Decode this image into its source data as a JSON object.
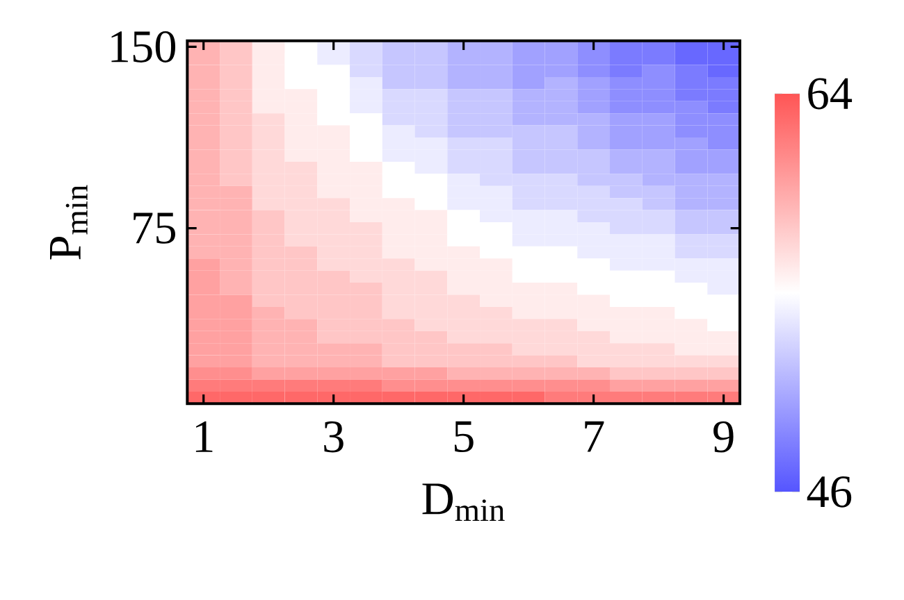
{
  "chart_data": {
    "type": "heatmap",
    "xlabel": "D$_{min}$",
    "ylabel": "P$_{min}$",
    "x": [
      1,
      1.5,
      2,
      2.5,
      3,
      3.5,
      4,
      4.5,
      5,
      5.5,
      6,
      6.5,
      7,
      7.5,
      8,
      8.5,
      9
    ],
    "y": [
      150,
      145,
      140,
      135,
      130,
      125,
      120,
      115,
      110,
      105,
      100,
      95,
      90,
      85,
      80,
      75,
      70,
      65,
      60,
      55,
      50,
      45,
      40,
      35,
      30,
      25,
      20,
      15,
      10,
      5
    ],
    "xlim": [
      0.75,
      9.25
    ],
    "ylim": [
      2.5,
      152.5
    ],
    "xticks": [
      1,
      3,
      5,
      7,
      9
    ],
    "yticks": [
      75,
      150
    ],
    "clim": [
      46,
      64
    ],
    "cticks": [
      46,
      64
    ],
    "cells": [
      [
        59,
        58,
        56,
        55,
        54,
        53,
        52,
        52,
        51,
        51,
        50,
        50,
        49,
        48,
        48,
        47,
        47
      ],
      [
        59,
        58,
        56,
        55,
        54,
        53,
        52,
        52,
        51,
        51,
        50,
        50,
        49,
        48,
        48,
        47,
        47
      ],
      [
        59,
        58,
        56,
        55,
        55,
        53,
        52,
        52,
        51,
        51,
        50,
        50,
        49,
        48,
        49,
        48,
        47
      ],
      [
        59,
        58,
        56,
        55,
        55,
        54,
        52,
        52,
        51,
        51,
        50,
        51,
        50,
        49,
        49,
        48,
        48
      ],
      [
        59,
        58,
        56,
        56,
        55,
        54,
        53,
        53,
        52,
        52,
        51,
        51,
        50,
        49,
        49,
        48,
        48
      ],
      [
        59,
        58,
        56,
        56,
        55,
        54,
        53,
        53,
        52,
        52,
        51,
        51,
        50,
        49,
        49,
        49,
        48
      ],
      [
        59,
        58,
        57,
        56,
        55,
        55,
        53,
        53,
        52,
        52,
        51,
        51,
        51,
        50,
        50,
        49,
        49
      ],
      [
        59,
        58,
        57,
        56,
        56,
        55,
        54,
        53,
        52,
        52,
        52,
        52,
        51,
        50,
        50,
        49,
        49
      ],
      [
        59,
        58,
        57,
        56,
        56,
        55,
        54,
        54,
        53,
        53,
        52,
        52,
        51,
        50,
        50,
        50,
        49
      ],
      [
        59,
        58,
        57,
        56,
        56,
        55,
        54,
        54,
        53,
        53,
        52,
        52,
        52,
        51,
        51,
        50,
        50
      ],
      [
        59,
        58,
        57,
        57,
        56,
        56,
        55,
        54,
        53,
        53,
        52,
        52,
        52,
        51,
        51,
        50,
        50
      ],
      [
        59,
        58,
        57,
        57,
        56,
        56,
        55,
        55,
        54,
        53,
        53,
        53,
        52,
        52,
        51,
        51,
        51
      ],
      [
        59,
        59,
        57,
        57,
        56,
        56,
        55,
        55,
        54,
        54,
        53,
        53,
        53,
        52,
        52,
        51,
        51
      ],
      [
        59,
        59,
        57,
        57,
        57,
        56,
        56,
        55,
        54,
        54,
        53,
        53,
        53,
        53,
        52,
        51,
        51
      ],
      [
        59,
        59,
        58,
        57,
        57,
        56,
        56,
        56,
        55,
        54,
        54,
        54,
        53,
        53,
        53,
        52,
        52
      ],
      [
        59,
        59,
        58,
        57,
        57,
        57,
        56,
        56,
        55,
        55,
        54,
        54,
        54,
        53,
        53,
        52,
        52
      ],
      [
        59,
        59,
        58,
        57,
        57,
        57,
        56,
        56,
        55,
        55,
        54,
        54,
        54,
        54,
        54,
        53,
        53
      ],
      [
        59,
        59,
        58,
        58,
        57,
        57,
        56,
        56,
        56,
        55,
        55,
        55,
        54,
        54,
        54,
        53,
        53
      ],
      [
        60,
        59,
        58,
        58,
        57,
        57,
        57,
        56,
        56,
        56,
        55,
        55,
        55,
        54,
        54,
        54,
        54
      ],
      [
        60,
        59,
        58,
        58,
        58,
        57,
        57,
        57,
        56,
        56,
        55,
        55,
        55,
        55,
        55,
        54,
        54
      ],
      [
        60,
        59,
        58,
        58,
        58,
        58,
        57,
        57,
        56,
        56,
        56,
        56,
        55,
        55,
        55,
        55,
        54
      ],
      [
        60,
        60,
        58,
        58,
        58,
        58,
        57,
        57,
        57,
        56,
        56,
        56,
        56,
        55,
        55,
        55,
        55
      ],
      [
        60,
        60,
        59,
        58,
        58,
        58,
        57,
        57,
        57,
        57,
        56,
        56,
        56,
        56,
        56,
        55,
        55
      ],
      [
        60,
        60,
        59,
        59,
        58,
        58,
        58,
        57,
        57,
        57,
        57,
        57,
        56,
        56,
        56,
        56,
        55
      ],
      [
        60,
        60,
        59,
        59,
        58,
        58,
        58,
        58,
        57,
        57,
        57,
        57,
        57,
        56,
        56,
        56,
        56
      ],
      [
        60,
        60,
        59,
        59,
        59,
        59,
        58,
        58,
        58,
        58,
        57,
        57,
        57,
        57,
        57,
        56,
        56
      ],
      [
        60,
        60,
        59,
        59,
        59,
        59,
        58,
        58,
        58,
        58,
        58,
        58,
        57,
        57,
        57,
        57,
        57
      ],
      [
        61,
        61,
        60,
        60,
        60,
        60,
        60,
        60,
        59,
        59,
        59,
        59,
        59,
        58,
        58,
        58,
        58
      ],
      [
        62,
        62,
        62,
        62,
        62,
        62,
        61,
        61,
        61,
        61,
        61,
        61,
        61,
        60,
        60,
        60,
        60
      ],
      [
        63,
        63,
        63,
        63,
        63,
        63,
        63,
        63,
        63,
        63,
        63,
        62,
        62,
        62,
        62,
        62,
        62
      ]
    ]
  }
}
